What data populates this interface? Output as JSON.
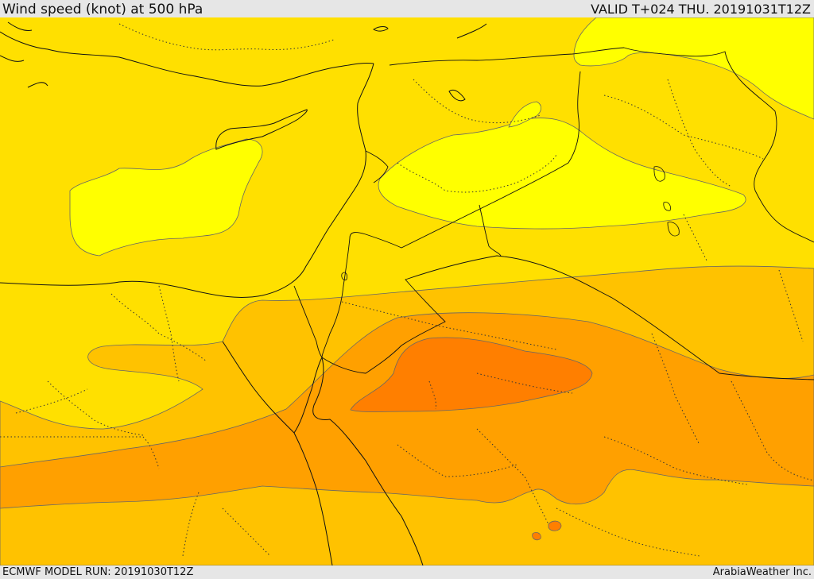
{
  "header": {
    "title": "Wind speed (knot) at 500 hPa",
    "valid_time": "VALID T+024 THU. 20191031T12Z"
  },
  "footer": {
    "model_run": "ECMWF MODEL RUN: 20191030T12Z",
    "credit": "ArabiaWeather Inc."
  },
  "colors": {
    "band_lowest": "#ffff00",
    "band_low": "#ffe000",
    "band_mid": "#ffc200",
    "band_high": "#ffa000",
    "band_highest": "#ff7f00"
  }
}
